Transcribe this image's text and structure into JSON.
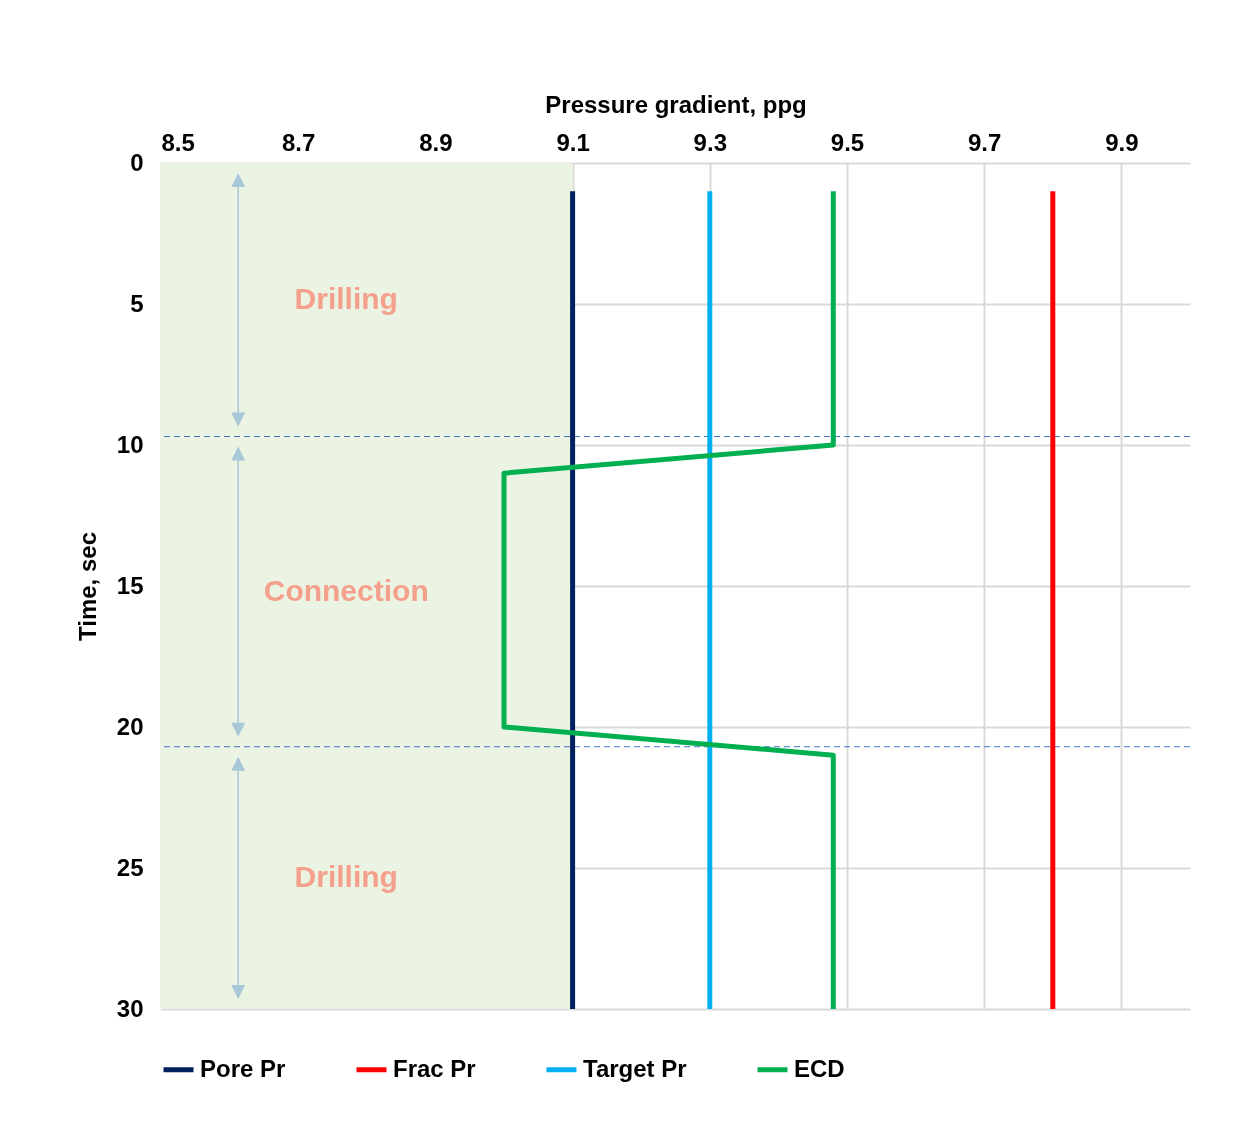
{
  "chart_data": {
    "type": "line",
    "xlabel": "Pressure gradient, ppg",
    "ylabel": "Time, sec",
    "series": [
      {
        "name": "Pore Pr",
        "color": "#002060",
        "x": [
          9.1,
          9.1
        ],
        "values": [
          1,
          30
        ]
      },
      {
        "name": "Frac Pr",
        "color": "#ff0000",
        "x": [
          9.8,
          9.8
        ],
        "values": [
          1,
          30
        ]
      },
      {
        "name": "Target Pr",
        "color": "#00b0f0",
        "x": [
          9.3,
          9.3
        ],
        "values": [
          1,
          30
        ]
      },
      {
        "name": "ECD",
        "color": "#00b050",
        "x": [
          9.48,
          9.48,
          9.0,
          9.0,
          9.48,
          9.48
        ],
        "values": [
          1,
          10,
          11,
          20,
          21,
          30
        ]
      }
    ],
    "xlim": [
      8.5,
      10.0
    ],
    "xticks": [
      8.5,
      8.7,
      8.9,
      9.1,
      9.3,
      9.5,
      9.7,
      9.9
    ],
    "ylim": [
      30,
      0
    ],
    "yticks": [
      0,
      5,
      10,
      15,
      20,
      25,
      30
    ],
    "bands": [
      {
        "axis": "x",
        "from": 8.5,
        "to": 9.1,
        "color": "#ebf3e3"
      }
    ],
    "ref_lines": [
      {
        "axis": "y",
        "value": 9.7,
        "color": "#4472c4",
        "line_style": "dashed"
      },
      {
        "axis": "y",
        "value": 20.7,
        "color": "#4472c4",
        "line_style": "dashed"
      }
    ],
    "annotations": [
      "Drilling",
      "Connection",
      "Drilling"
    ],
    "grid": true,
    "legend": "bottom",
    "line_style": "solid",
    "marker": "none"
  }
}
